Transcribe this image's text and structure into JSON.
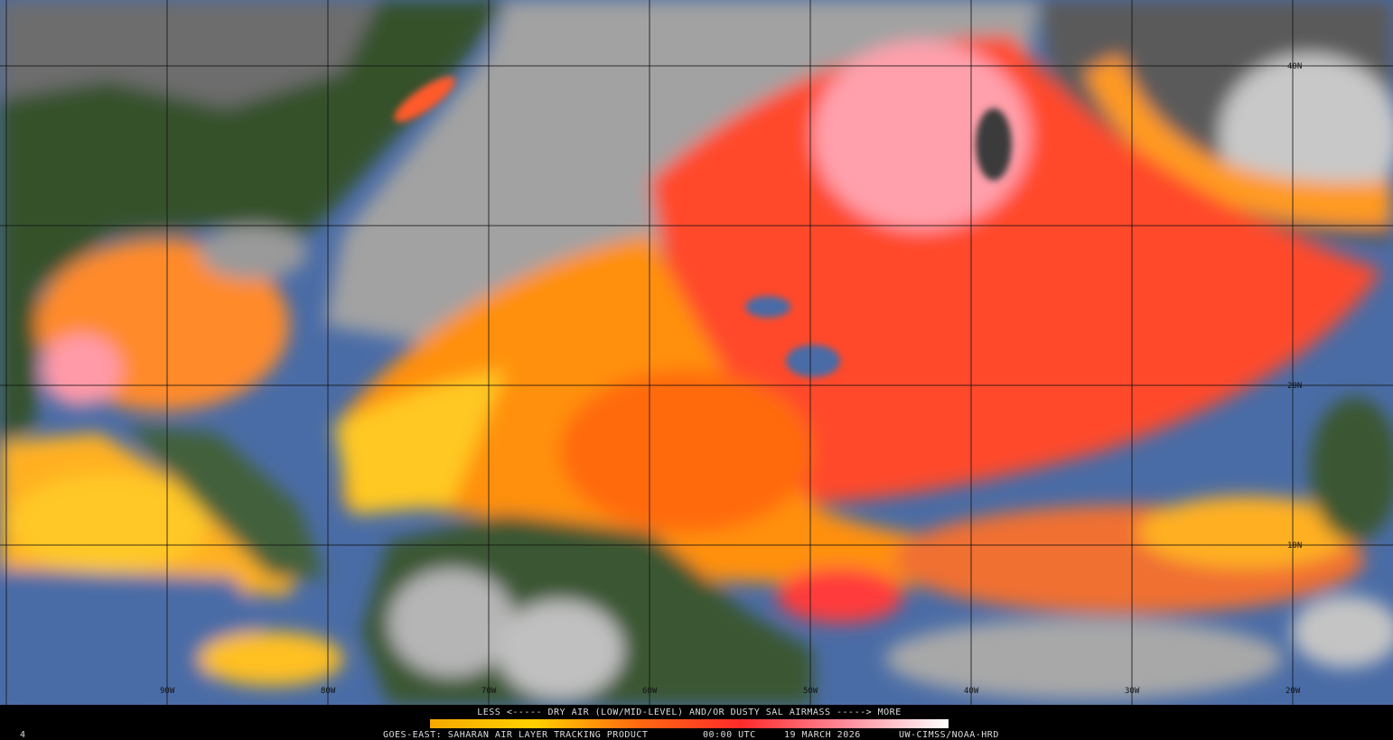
{
  "map": {
    "longitude_labels": [
      "90W",
      "80W",
      "70W",
      "60W",
      "50W",
      "40W",
      "30W",
      "20W"
    ],
    "latitude_labels": [
      "40N",
      "20N",
      "10N"
    ]
  },
  "legend": {
    "scale_text": "LESS <----- DRY AIR (LOW/MID-LEVEL) AND/OR DUSTY SAL AIRMASS -----> MORE"
  },
  "footer": {
    "frame": "4",
    "product": "GOES-EAST: SAHARAN AIR LAYER TRACKING PRODUCT",
    "time": "00:00 UTC",
    "date": "19 MARCH 2026",
    "credit": "UW-CIMSS/NOAA-HRD"
  }
}
